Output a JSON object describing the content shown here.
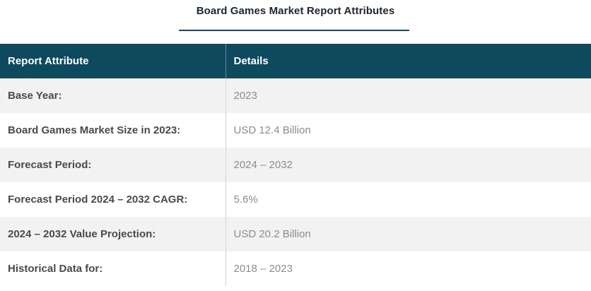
{
  "header": {
    "title": "Board Games Market Report Attributes"
  },
  "table": {
    "columns": [
      "Report Attribute",
      "Details"
    ],
    "rows": [
      {
        "attribute": "Base Year:",
        "detail": "2023"
      },
      {
        "attribute": "Board Games Market Size in 2023:",
        "detail": "USD 12.4 Billion"
      },
      {
        "attribute": "Forecast Period:",
        "detail": "2024 – 2032"
      },
      {
        "attribute": "Forecast Period 2024 – 2032 CAGR:",
        "detail": "5.6%"
      },
      {
        "attribute": "2024 – 2032 Value Projection:",
        "detail": "USD 20.2 Billion"
      },
      {
        "attribute": "Historical Data for:",
        "detail": "2018 – 2023"
      }
    ]
  },
  "colors": {
    "header_bg": "#0d4a5e",
    "accent": "#0f4c60",
    "stripe": "#f2f2f2"
  }
}
